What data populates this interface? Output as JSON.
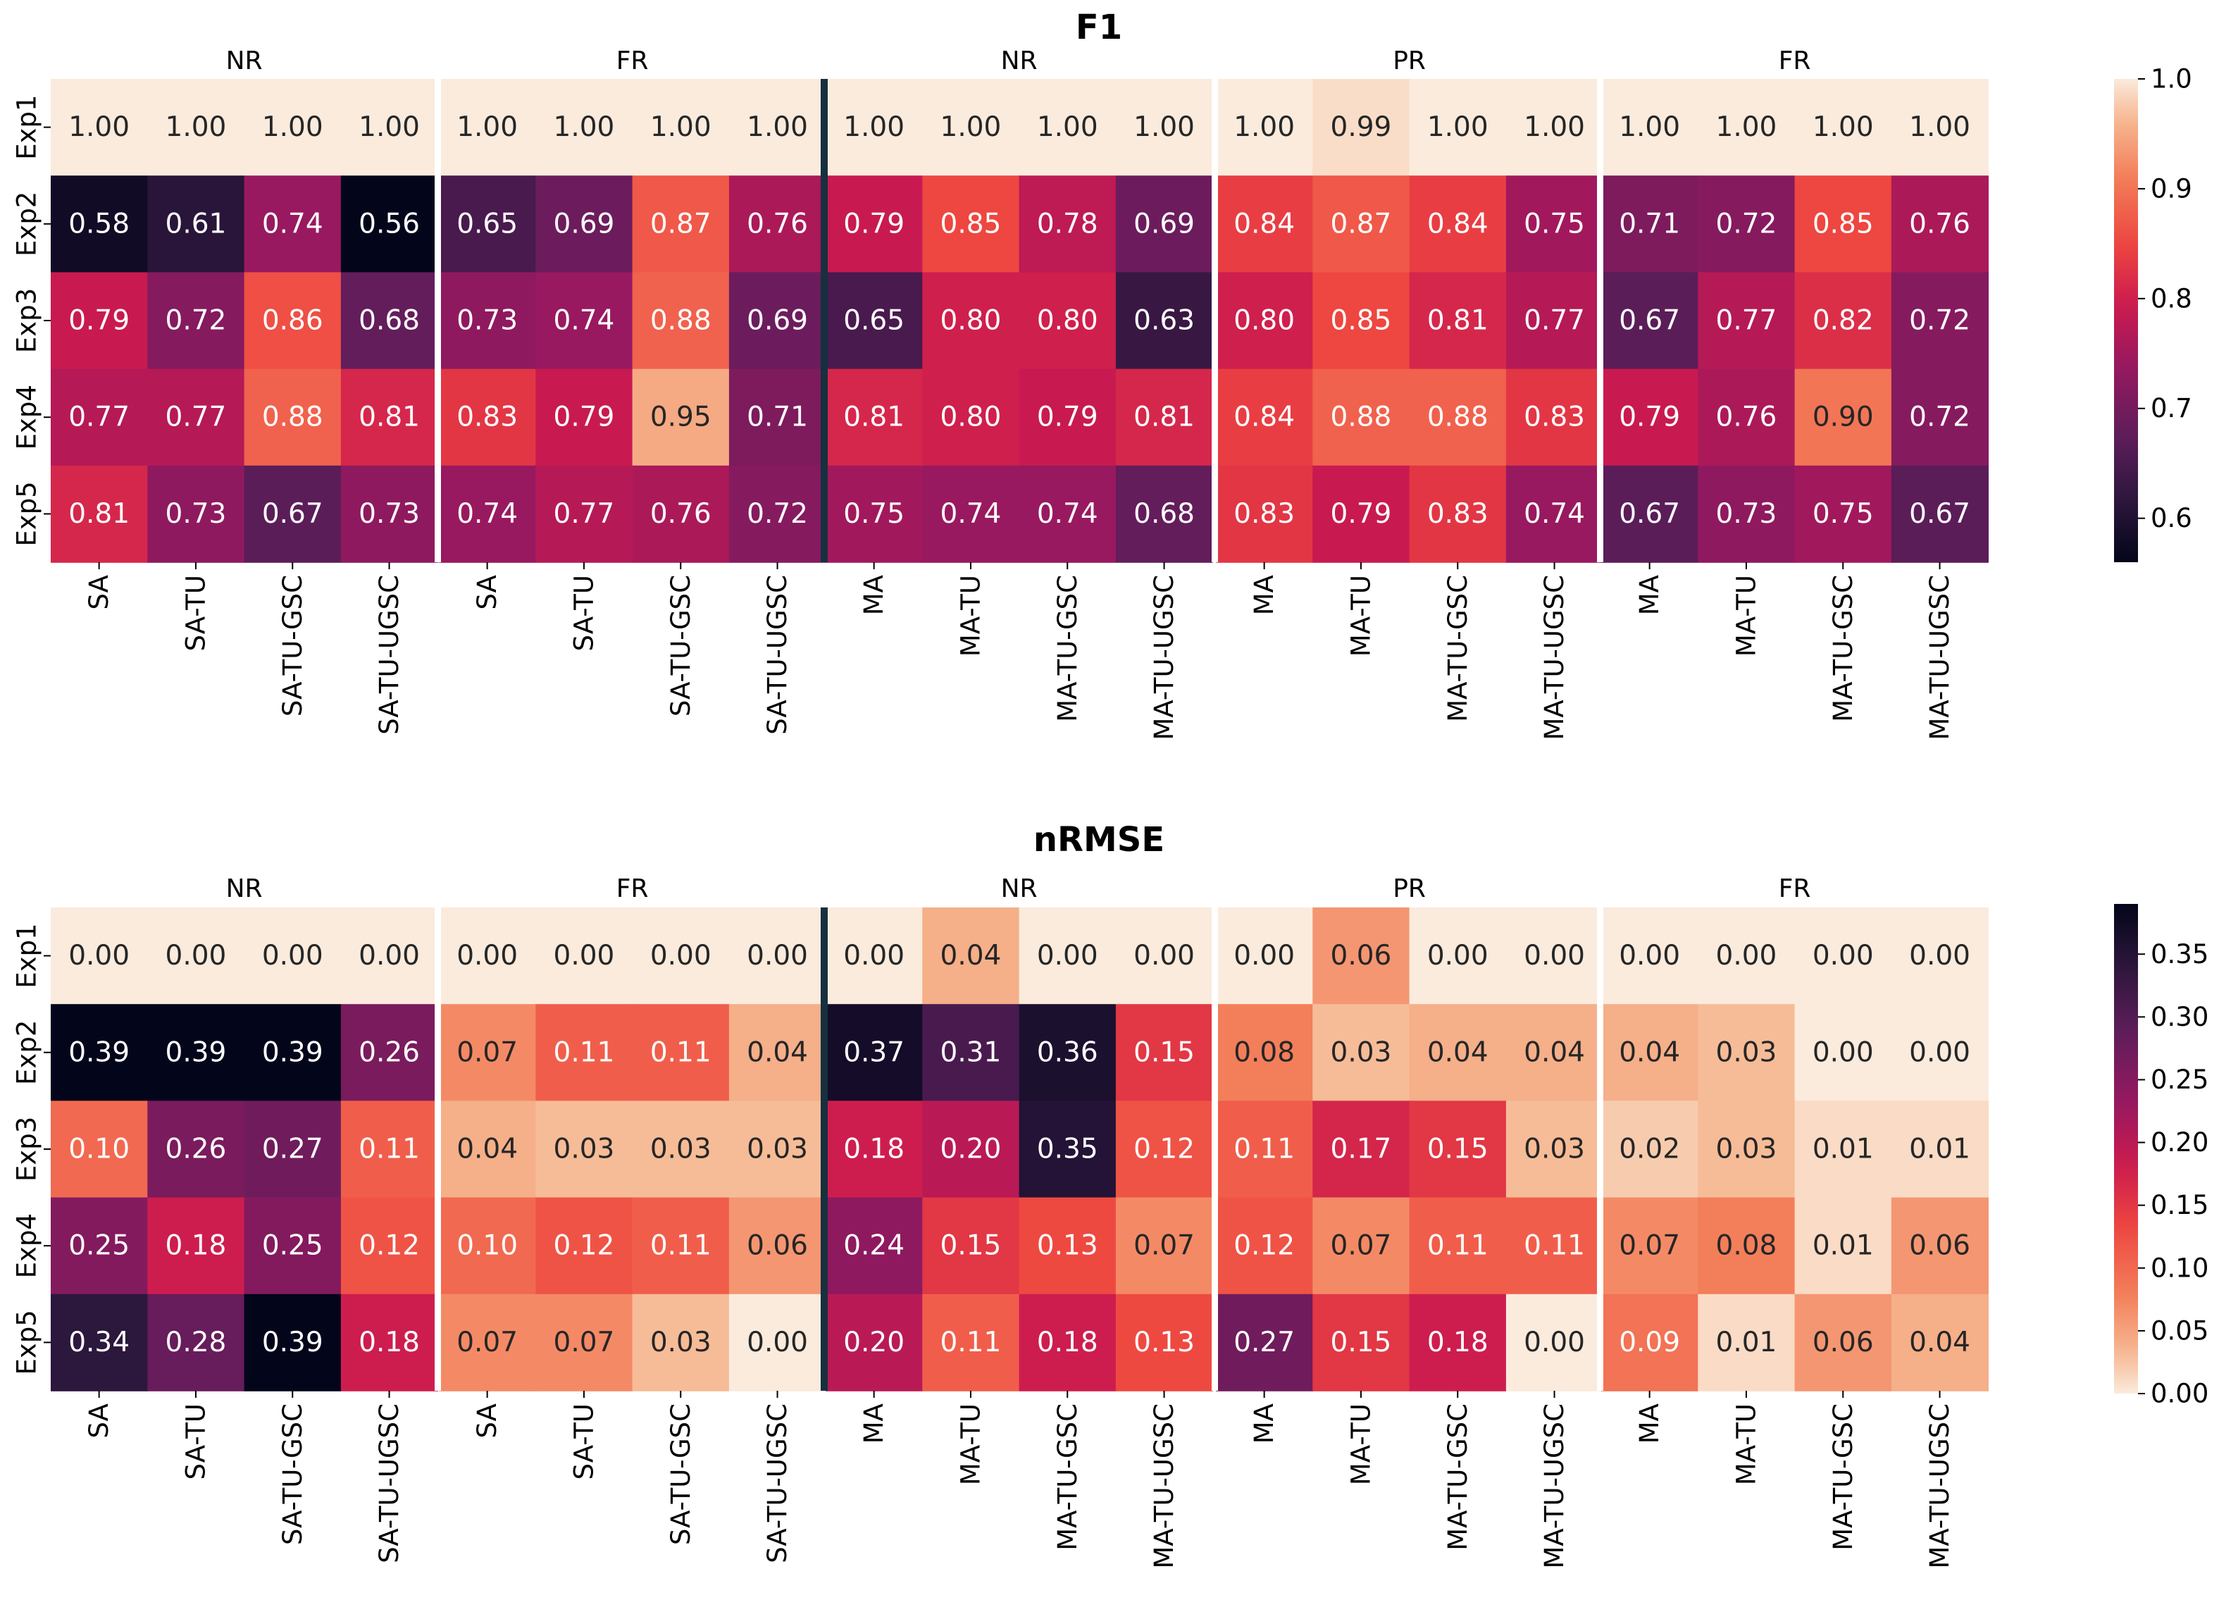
{
  "chart_data": [
    {
      "type": "heatmap",
      "title": "F1",
      "rows": [
        "Exp1",
        "Exp2",
        "Exp3",
        "Exp4",
        "Exp5"
      ],
      "groups": [
        {
          "label": "NR",
          "columns": [
            "SA",
            "SA-TU",
            "SA-TU-GSC",
            "SA-TU-UGSC"
          ]
        },
        {
          "label": "FR",
          "columns": [
            "SA",
            "SA-TU",
            "SA-TU-GSC",
            "SA-TU-UGSC"
          ]
        },
        {
          "label": "NR",
          "columns": [
            "MA",
            "MA-TU",
            "MA-TU-GSC",
            "MA-TU-UGSC"
          ]
        },
        {
          "label": "PR",
          "columns": [
            "MA",
            "MA-TU",
            "MA-TU-GSC",
            "MA-TU-UGSC"
          ]
        },
        {
          "label": "FR",
          "columns": [
            "MA",
            "MA-TU",
            "MA-TU-GSC",
            "MA-TU-UGSC"
          ]
        }
      ],
      "values": [
        [
          1.0,
          1.0,
          1.0,
          1.0,
          1.0,
          1.0,
          1.0,
          1.0,
          1.0,
          1.0,
          1.0,
          1.0,
          1.0,
          0.99,
          1.0,
          1.0,
          1.0,
          1.0,
          1.0,
          1.0
        ],
        [
          0.58,
          0.61,
          0.74,
          0.56,
          0.65,
          0.69,
          0.87,
          0.76,
          0.79,
          0.85,
          0.78,
          0.69,
          0.84,
          0.87,
          0.84,
          0.75,
          0.71,
          0.72,
          0.85,
          0.76
        ],
        [
          0.79,
          0.72,
          0.86,
          0.68,
          0.73,
          0.74,
          0.88,
          0.69,
          0.65,
          0.8,
          0.8,
          0.63,
          0.8,
          0.85,
          0.81,
          0.77,
          0.67,
          0.77,
          0.82,
          0.72
        ],
        [
          0.77,
          0.77,
          0.88,
          0.81,
          0.83,
          0.79,
          0.95,
          0.71,
          0.81,
          0.8,
          0.79,
          0.81,
          0.84,
          0.88,
          0.88,
          0.83,
          0.79,
          0.76,
          0.9,
          0.72
        ],
        [
          0.81,
          0.73,
          0.67,
          0.73,
          0.74,
          0.77,
          0.76,
          0.72,
          0.75,
          0.74,
          0.74,
          0.68,
          0.83,
          0.79,
          0.83,
          0.74,
          0.67,
          0.73,
          0.75,
          0.67
        ]
      ],
      "vmin": 0.56,
      "vmax": 1.0,
      "colormap": "rocket",
      "colorbar_ticks": [
        "0.6",
        "0.7",
        "0.8",
        "0.9",
        "1.0"
      ]
    },
    {
      "type": "heatmap",
      "title": "nRMSE",
      "rows": [
        "Exp1",
        "Exp2",
        "Exp3",
        "Exp4",
        "Exp5"
      ],
      "groups": [
        {
          "label": "NR",
          "columns": [
            "SA",
            "SA-TU",
            "SA-TU-GSC",
            "SA-TU-UGSC"
          ]
        },
        {
          "label": "FR",
          "columns": [
            "SA",
            "SA-TU",
            "SA-TU-GSC",
            "SA-TU-UGSC"
          ]
        },
        {
          "label": "NR",
          "columns": [
            "MA",
            "MA-TU",
            "MA-TU-GSC",
            "MA-TU-UGSC"
          ]
        },
        {
          "label": "PR",
          "columns": [
            "MA",
            "MA-TU",
            "MA-TU-GSC",
            "MA-TU-UGSC"
          ]
        },
        {
          "label": "FR",
          "columns": [
            "MA",
            "MA-TU",
            "MA-TU-GSC",
            "MA-TU-UGSC"
          ]
        }
      ],
      "values": [
        [
          0.0,
          0.0,
          0.0,
          0.0,
          0.0,
          0.0,
          0.0,
          0.0,
          0.0,
          0.04,
          0.0,
          0.0,
          0.0,
          0.06,
          0.0,
          0.0,
          0.0,
          0.0,
          0.0,
          0.0
        ],
        [
          0.39,
          0.39,
          0.39,
          0.26,
          0.07,
          0.11,
          0.11,
          0.04,
          0.37,
          0.31,
          0.36,
          0.15,
          0.08,
          0.03,
          0.04,
          0.04,
          0.04,
          0.03,
          0.0,
          0.0
        ],
        [
          0.1,
          0.26,
          0.27,
          0.11,
          0.04,
          0.03,
          0.03,
          0.03,
          0.18,
          0.2,
          0.35,
          0.12,
          0.11,
          0.17,
          0.15,
          0.03,
          0.02,
          0.03,
          0.01,
          0.01
        ],
        [
          0.25,
          0.18,
          0.25,
          0.12,
          0.1,
          0.12,
          0.11,
          0.06,
          0.24,
          0.15,
          0.13,
          0.07,
          0.12,
          0.07,
          0.11,
          0.11,
          0.07,
          0.08,
          0.01,
          0.06
        ],
        [
          0.34,
          0.28,
          0.39,
          0.18,
          0.07,
          0.07,
          0.03,
          0.0,
          0.2,
          0.11,
          0.18,
          0.13,
          0.27,
          0.15,
          0.18,
          0.0,
          0.09,
          0.01,
          0.06,
          0.04
        ]
      ],
      "vmin": 0.0,
      "vmax": 0.39,
      "colormap": "rocket_r",
      "colorbar_ticks": [
        "0.00",
        "0.05",
        "0.10",
        "0.15",
        "0.20",
        "0.25",
        "0.30",
        "0.35"
      ]
    }
  ]
}
